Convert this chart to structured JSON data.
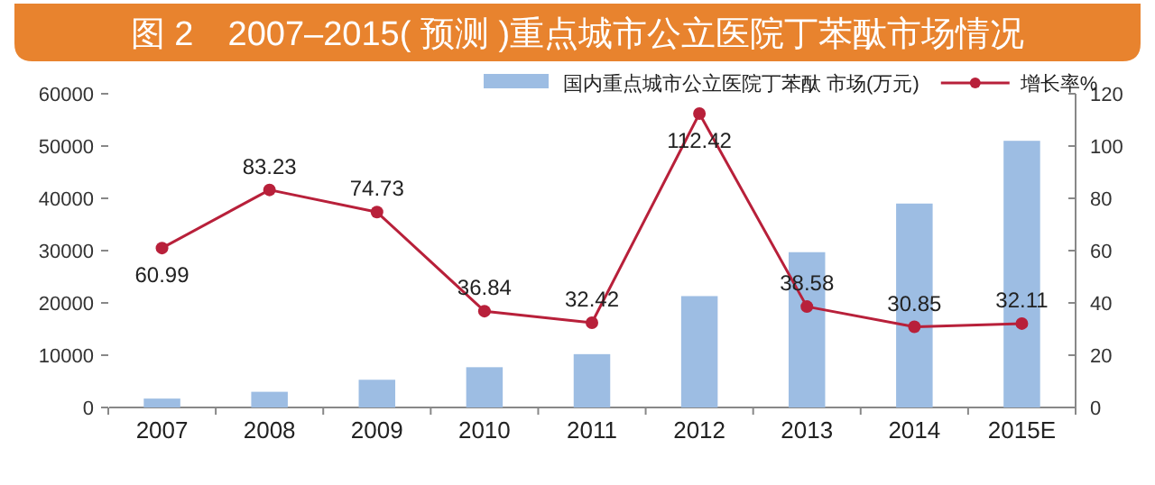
{
  "chart_data": {
    "type": "bar",
    "title": "图 2　2007–2015( 预测 )重点城市公立医院丁苯酞市场情况",
    "categories": [
      "2007",
      "2008",
      "2009",
      "2010",
      "2011",
      "2012",
      "2013",
      "2014",
      "2015E"
    ],
    "series": [
      {
        "name": "国内重点城市公立医院丁苯酞 市场(万元)",
        "color": "#9dbde3",
        "values": [
          1700,
          3000,
          5300,
          7700,
          10200,
          21300,
          29700,
          39000,
          51000
        ]
      },
      {
        "name": "增长率%",
        "type": "line",
        "axis": "y2",
        "marker": "circle",
        "color": "#b8203a",
        "values": [
          60.99,
          83.23,
          74.73,
          36.84,
          32.42,
          112.42,
          38.58,
          30.85,
          32.11
        ],
        "value_labels": [
          "60.99",
          "83.23",
          "74.73",
          "36.84",
          "32.42",
          "112.42",
          "38.58",
          "30.85",
          "32.11"
        ]
      }
    ],
    "ylim": [
      0,
      60000
    ],
    "yticks": [
      0,
      10000,
      20000,
      30000,
      40000,
      50000,
      60000
    ],
    "y2lim": [
      0,
      120
    ],
    "y2ticks": [
      0,
      20,
      40,
      60,
      80,
      100,
      120
    ],
    "legend": "top",
    "grid": false
  }
}
